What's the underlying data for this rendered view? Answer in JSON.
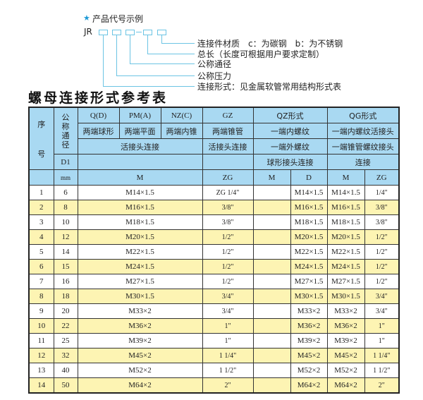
{
  "legend": {
    "star_icon": "star-icon",
    "title": "产品代号示例",
    "code_prefix": "JR",
    "labels": [
      "连接件材质　c：为碳钢　b：为不锈钢",
      "总长（长度可根据用户要求定制）",
      "公称通径",
      "公称压力",
      "连接形式：见金属软管常用结构形式表"
    ]
  },
  "table_title": "螺母连接形式参考表",
  "header": {
    "seq": "序　号",
    "seq_top": "序",
    "seq_bottom": "号",
    "dn": "公称通径",
    "q": "Q(D)",
    "pm": "PM(A)",
    "nz": "NZ(C)",
    "gz": "GZ",
    "qz": "QZ形式",
    "qg": "QG形式",
    "q_desc": "两端球形",
    "pm_desc": "两端平面",
    "nz_desc": "两端内锥",
    "gz_desc": "两端锥管",
    "qz_desc": "一端内螺纹",
    "qg_desc": "一端内螺纹活接头",
    "qpmnz_conn": "活接头连接",
    "gz_conn": "活接头连接",
    "qz_conn1": "一端外螺纹",
    "qg_conn1": "一端锥管螺纹接头",
    "d1": "D1",
    "qz_conn2": "球形接头连接",
    "qg_conn2": "连接",
    "mm": "mm",
    "m": "M",
    "zg": "ZG",
    "qz_m": "M",
    "qz_d": "D",
    "qg_m": "M",
    "qg_zg": "ZG"
  },
  "rows": [
    {
      "no": "1",
      "dn": "6",
      "m": "M14×1.5",
      "gz": "ZG 1/4\"",
      "qz_m": "",
      "qz_d": "M14×1.5",
      "qg_m": "M14×1.5",
      "qg_zg": "1/4\""
    },
    {
      "no": "2",
      "dn": "8",
      "m": "M16×1.5",
      "gz": "3/8\"",
      "qz_m": "",
      "qz_d": "M16×1.5",
      "qg_m": "M16×1.5",
      "qg_zg": "3/8\""
    },
    {
      "no": "3",
      "dn": "10",
      "m": "M18×1.5",
      "gz": "3/8\"",
      "qz_m": "",
      "qz_d": "M18×1.5",
      "qg_m": "M18×1.5",
      "qg_zg": "3/8\""
    },
    {
      "no": "4",
      "dn": "12",
      "m": "M20×1.5",
      "gz": "1/2\"",
      "qz_m": "",
      "qz_d": "M20×1.5",
      "qg_m": "M20×1.5",
      "qg_zg": "1/2\""
    },
    {
      "no": "5",
      "dn": "14",
      "m": "M22×1.5",
      "gz": "1/2\"",
      "qz_m": "",
      "qz_d": "M22×1.5",
      "qg_m": "M22×1.5",
      "qg_zg": "1/2\""
    },
    {
      "no": "6",
      "dn": "15",
      "m": "M24×1.5",
      "gz": "1/2\"",
      "qz_m": "",
      "qz_d": "M24×1.5",
      "qg_m": "M24×1.5",
      "qg_zg": "1/2\""
    },
    {
      "no": "7",
      "dn": "16",
      "m": "M27×1.5",
      "gz": "1/2\"",
      "qz_m": "",
      "qz_d": "M27×1.5",
      "qg_m": "M27×1.5",
      "qg_zg": "1/2\""
    },
    {
      "no": "8",
      "dn": "18",
      "m": "M30×1.5",
      "gz": "3/4\"",
      "qz_m": "",
      "qz_d": "M30×1.5",
      "qg_m": "M30×1.5",
      "qg_zg": "3/4\""
    },
    {
      "no": "9",
      "dn": "20",
      "m": "M33×2",
      "gz": "3/4\"",
      "qz_m": "",
      "qz_d": "M33×2",
      "qg_m": "M33×2",
      "qg_zg": "3/4\""
    },
    {
      "no": "10",
      "dn": "22",
      "m": "M36×2",
      "gz": "1\"",
      "qz_m": "",
      "qz_d": "M36×2",
      "qg_m": "M36×2",
      "qg_zg": "1\""
    },
    {
      "no": "11",
      "dn": "25",
      "m": "M39×2",
      "gz": "1\"",
      "qz_m": "",
      "qz_d": "M39×2",
      "qg_m": "M39×2",
      "qg_zg": "1\""
    },
    {
      "no": "12",
      "dn": "32",
      "m": "M45×2",
      "gz": "1 1/4\"",
      "qz_m": "",
      "qz_d": "M45×2",
      "qg_m": "M45×2",
      "qg_zg": "1 1/4\""
    },
    {
      "no": "13",
      "dn": "40",
      "m": "M52×2",
      "gz": "1 1/2\"",
      "qz_m": "",
      "qz_d": "M52×2",
      "qg_m": "M52×2",
      "qg_zg": "1 1/2\""
    },
    {
      "no": "14",
      "dn": "50",
      "m": "M64×2",
      "gz": "2\"",
      "qz_m": "",
      "qz_d": "M64×2",
      "qg_m": "M64×2",
      "qg_zg": "2\""
    }
  ],
  "colors": {
    "header_bg": "#a9d9f2",
    "row_alt": "#fdf4b3",
    "accent": "#1e9ad6",
    "line": "#6cc4e4"
  }
}
